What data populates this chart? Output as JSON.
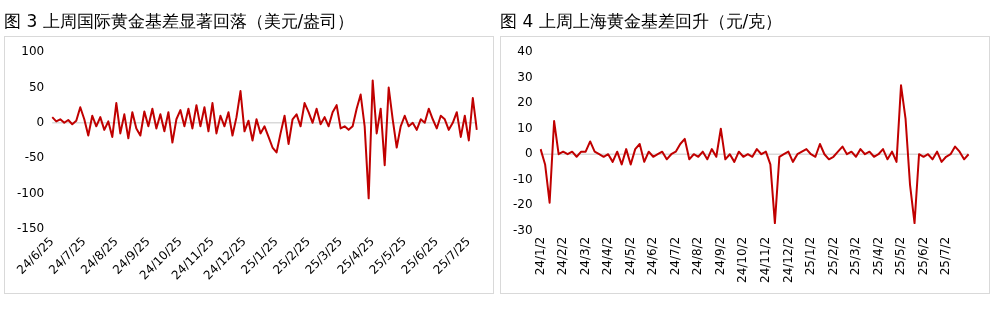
{
  "chart_data": [
    {
      "type": "line",
      "title": "图 3  上周国际黄金基差显著回落（美元/盎司）",
      "categories": [
        "24/6/25",
        null,
        null,
        null,
        null,
        null,
        null,
        null,
        "24/7/25",
        null,
        null,
        null,
        null,
        null,
        null,
        null,
        "24/8/25",
        null,
        null,
        null,
        null,
        null,
        null,
        null,
        "24/9/25",
        null,
        null,
        null,
        null,
        null,
        null,
        null,
        "24/10/25",
        null,
        null,
        null,
        null,
        null,
        null,
        null,
        "24/11/25",
        null,
        null,
        null,
        null,
        null,
        null,
        null,
        "24/12/25",
        null,
        null,
        null,
        null,
        null,
        null,
        null,
        "25/1/25",
        null,
        null,
        null,
        null,
        null,
        null,
        null,
        "25/2/25",
        null,
        null,
        null,
        null,
        null,
        null,
        null,
        "25/3/25",
        null,
        null,
        null,
        null,
        null,
        null,
        null,
        "25/4/25",
        null,
        null,
        null,
        null,
        null,
        null,
        null,
        "25/5/25",
        null,
        null,
        null,
        null,
        null,
        null,
        null,
        "25/6/25",
        null,
        null,
        null,
        null,
        null,
        null,
        null,
        "25/7/25",
        null,
        null
      ],
      "series": [
        {
          "color": "#c00000",
          "values": [
            8,
            2,
            5,
            0,
            4,
            -2,
            3,
            22,
            5,
            -18,
            10,
            -5,
            8,
            -10,
            2,
            -20,
            28,
            -15,
            12,
            -22,
            15,
            -8,
            -18,
            16,
            -5,
            20,
            -8,
            12,
            -12,
            15,
            -28,
            5,
            18,
            -5,
            20,
            -8,
            25,
            -5,
            22,
            -12,
            28,
            -15,
            10,
            -5,
            15,
            -18,
            8,
            45,
            -12,
            3,
            -25,
            5,
            -15,
            -5,
            -20,
            -35,
            -42,
            -15,
            10,
            -30,
            5,
            12,
            -5,
            28,
            15,
            0,
            20,
            -2,
            8,
            -5,
            15,
            25,
            -8,
            -5,
            -10,
            -5,
            20,
            40,
            -5,
            -107,
            60,
            -15,
            20,
            -60,
            50,
            5,
            -35,
            -5,
            10,
            -5,
            0,
            -10,
            5,
            0,
            20,
            5,
            -8,
            10,
            5,
            -10,
            0,
            15,
            -20,
            10,
            -25,
            35,
            -10
          ]
        }
      ],
      "ylim": [
        -150,
        100
      ],
      "yticks": [
        -150,
        -100,
        -50,
        0,
        50,
        100
      ],
      "grid": false,
      "ref_lines": [
        {
          "axis": "y",
          "value": 0,
          "color": "#d9d9d9"
        }
      ]
    },
    {
      "type": "line",
      "title": "图 4  上周上海黄金基差回升（元/克）",
      "categories": [
        "24/1/2",
        null,
        null,
        null,
        null,
        "24/2/2",
        null,
        null,
        null,
        null,
        "24/3/2",
        null,
        null,
        null,
        null,
        "24/4/2",
        null,
        null,
        null,
        null,
        "24/5/2",
        null,
        null,
        null,
        null,
        "24/6/2",
        null,
        null,
        null,
        null,
        "24/7/2",
        null,
        null,
        null,
        null,
        "24/8/2",
        null,
        null,
        null,
        null,
        "24/9/2",
        null,
        null,
        null,
        null,
        "24/10/2",
        null,
        null,
        null,
        null,
        "24/11/2",
        null,
        null,
        null,
        null,
        "24/12/2",
        null,
        null,
        null,
        null,
        "25/1/2",
        null,
        null,
        null,
        null,
        "25/2/2",
        null,
        null,
        null,
        null,
        "25/3/2",
        null,
        null,
        null,
        null,
        "25/4/2",
        null,
        null,
        null,
        null,
        "25/5/2",
        null,
        null,
        null,
        null,
        "25/6/2",
        null,
        null,
        null,
        null,
        "25/7/2",
        null,
        null,
        null,
        null,
        null
      ],
      "series": [
        {
          "color": "#c00000",
          "values": [
            2,
            -4,
            -19,
            13,
            0,
            1,
            0,
            1,
            -1,
            1,
            1,
            5,
            1,
            0,
            -1,
            0,
            -3,
            1,
            -4,
            2,
            -4,
            2,
            4,
            -3,
            1,
            -1,
            0,
            1,
            -2,
            0,
            1,
            4,
            6,
            -2,
            0,
            -1,
            1,
            -2,
            2,
            -1,
            10,
            -2,
            0,
            -3,
            1,
            -1,
            0,
            -1,
            2,
            0,
            1,
            -4,
            -27,
            -1,
            0,
            1,
            -3,
            0,
            1,
            2,
            0,
            -1,
            4,
            0,
            -2,
            -1,
            1,
            3,
            0,
            1,
            -1,
            2,
            0,
            1,
            -1,
            0,
            2,
            -2,
            1,
            -3,
            27,
            14,
            -12,
            -27,
            0,
            -1,
            0,
            -2,
            1,
            -3,
            -1,
            0,
            3,
            1,
            -2,
            0
          ]
        }
      ],
      "ylim": [
        -30,
        40
      ],
      "yticks": [
        -30,
        -20,
        -10,
        0,
        10,
        20,
        30,
        40
      ],
      "grid": false,
      "ref_lines": [
        {
          "axis": "y",
          "value": 0,
          "color": "#d9d9d9"
        }
      ]
    }
  ]
}
